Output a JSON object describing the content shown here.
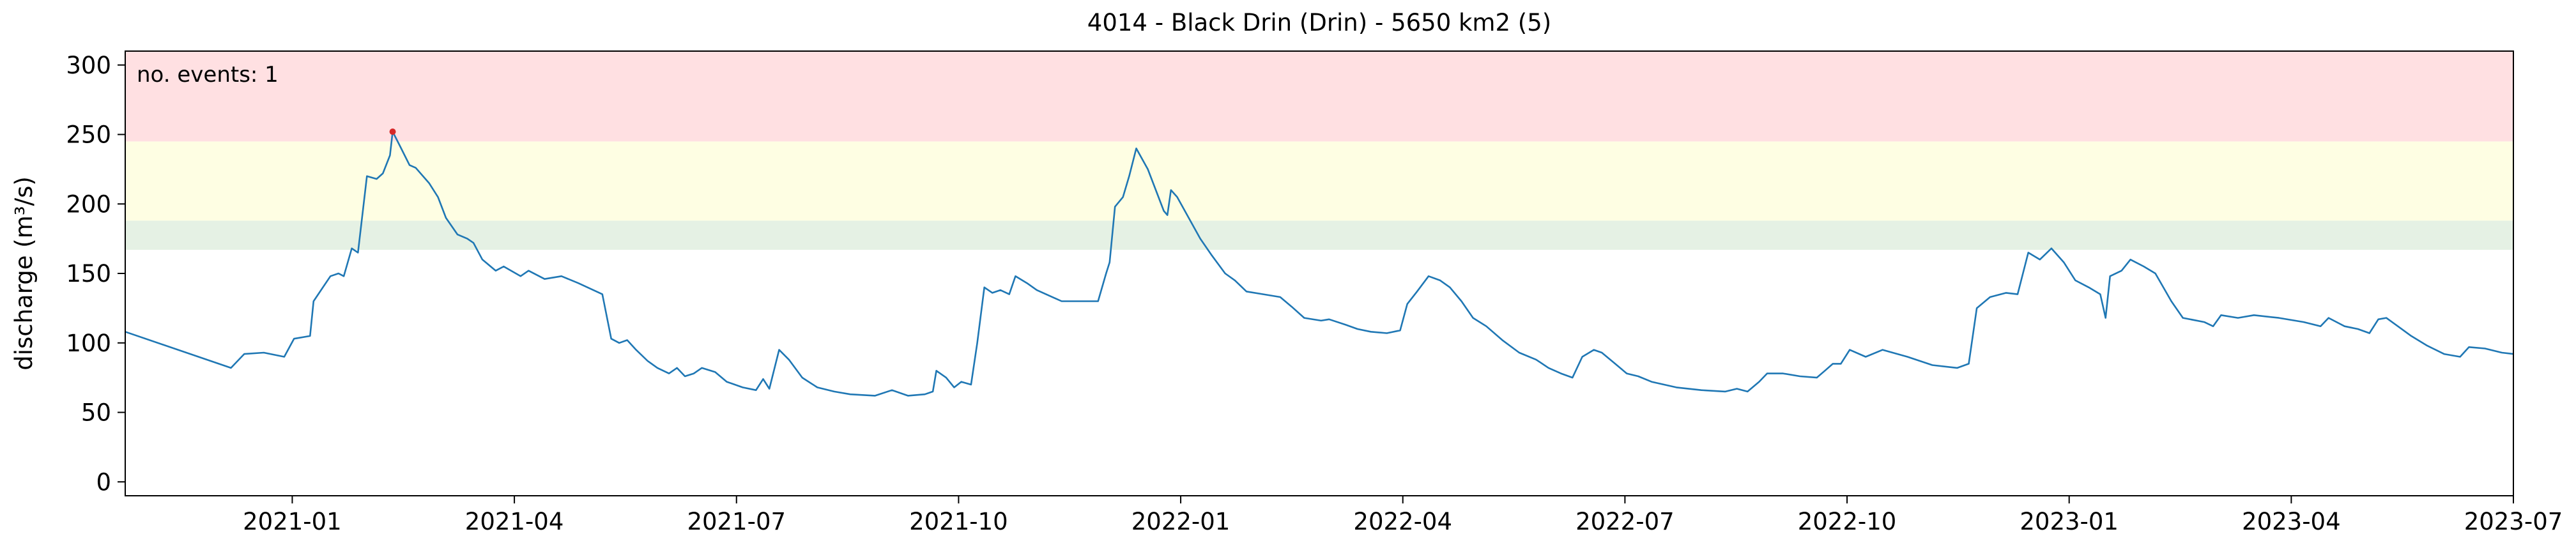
{
  "chart_data": {
    "type": "line",
    "title": "4014 - Black Drin (Drin) - 5650 km2 (5)",
    "y_label": "discharge (m³/s)",
    "annotation": "no. events: 1",
    "annotation_color": "#d62728",
    "xlim": [
      2020.812,
      2023.5
    ],
    "ylim": [
      -10,
      310
    ],
    "yticks": [
      0,
      50,
      100,
      150,
      200,
      250,
      300
    ],
    "xticks": [
      {
        "value": 2021.0,
        "label": "2021-01"
      },
      {
        "value": 2021.25,
        "label": "2021-04"
      },
      {
        "value": 2021.5,
        "label": "2021-07"
      },
      {
        "value": 2021.75,
        "label": "2021-10"
      },
      {
        "value": 2022.0,
        "label": "2022-01"
      },
      {
        "value": 2022.25,
        "label": "2022-04"
      },
      {
        "value": 2022.5,
        "label": "2022-07"
      },
      {
        "value": 2022.75,
        "label": "2022-10"
      },
      {
        "value": 2023.0,
        "label": "2023-01"
      },
      {
        "value": 2023.25,
        "label": "2023-04"
      },
      {
        "value": 2023.5,
        "label": "2023-07"
      }
    ],
    "bands": [
      {
        "from": 167,
        "to": 188,
        "color": "#e5f1e4"
      },
      {
        "from": 188,
        "to": 245,
        "color": "#fefee3"
      },
      {
        "from": 245,
        "to": 310,
        "color": "#ffe0e2"
      }
    ],
    "x": [
      2020.812,
      2020.931,
      2020.946,
      2020.968,
      2020.991,
      2021.002,
      2021.02,
      2021.024,
      2021.043,
      2021.052,
      2021.058,
      2021.067,
      2021.074,
      2021.084,
      2021.095,
      2021.102,
      2021.11,
      2021.113,
      2021.121,
      2021.132,
      2021.139,
      2021.154,
      2021.164,
      2021.173,
      2021.186,
      2021.197,
      2021.204,
      2021.214,
      2021.229,
      2021.238,
      2021.257,
      2021.266,
      2021.284,
      2021.303,
      2021.322,
      2021.349,
      2021.359,
      2021.368,
      2021.377,
      2021.387,
      2021.4,
      2021.411,
      2021.424,
      2021.433,
      2021.442,
      2021.452,
      2021.461,
      2021.476,
      2021.489,
      2021.507,
      2021.522,
      2021.53,
      2021.537,
      2021.548,
      2021.559,
      2021.574,
      2021.591,
      2021.61,
      2021.628,
      2021.656,
      2021.675,
      2021.693,
      2021.712,
      2021.721,
      2021.725,
      2021.736,
      2021.745,
      2021.753,
      2021.764,
      2021.771,
      2021.779,
      2021.788,
      2021.797,
      2021.807,
      2021.814,
      2021.827,
      2021.838,
      2021.866,
      2021.907,
      2021.916,
      2021.92,
      2021.926,
      2021.935,
      2021.942,
      2021.95,
      2021.963,
      2021.972,
      2021.981,
      2021.985,
      2021.989,
      2021.996,
      2022.009,
      2022.022,
      2022.035,
      2022.05,
      2022.061,
      2022.074,
      2022.093,
      2022.112,
      2022.125,
      2022.139,
      2022.158,
      2022.167,
      2022.186,
      2022.199,
      2022.214,
      2022.232,
      2022.247,
      2022.255,
      2022.266,
      2022.279,
      2022.292,
      2022.303,
      2022.316,
      2022.329,
      2022.344,
      2022.362,
      2022.381,
      2022.4,
      2022.414,
      2022.428,
      2022.441,
      2022.452,
      2022.465,
      2022.474,
      2022.489,
      2022.502,
      2022.515,
      2022.53,
      2022.558,
      2022.586,
      2022.613,
      2022.626,
      2022.638,
      2022.651,
      2022.66,
      2022.678,
      2022.697,
      2022.716,
      2022.725,
      2022.734,
      2022.743,
      2022.753,
      2022.771,
      2022.79,
      2022.818,
      2022.846,
      2022.874,
      2022.887,
      2022.896,
      2022.911,
      2022.929,
      2022.942,
      2022.954,
      2022.967,
      2022.98,
      2022.994,
      2023.007,
      2023.022,
      2023.035,
      2023.041,
      2023.046,
      2023.059,
      2023.069,
      2023.084,
      2023.097,
      2023.115,
      2023.128,
      2023.152,
      2023.162,
      2023.171,
      2023.19,
      2023.208,
      2023.236,
      2023.264,
      2023.283,
      2023.292,
      2023.31,
      2023.325,
      2023.338,
      2023.348,
      2023.357,
      2023.37,
      2023.385,
      2023.403,
      2023.422,
      2023.44,
      2023.45,
      2023.468,
      2023.487,
      2023.5
    ],
    "series": [
      {
        "color": "#1f77b4",
        "values": [
          108,
          82,
          92,
          93,
          90,
          103,
          105,
          130,
          148,
          150,
          148,
          168,
          165,
          220,
          218,
          222,
          235,
          252,
          242,
          228,
          226,
          215,
          205,
          190,
          178,
          175,
          172,
          160,
          152,
          155,
          148,
          152,
          146,
          148,
          143,
          135,
          103,
          100,
          102,
          95,
          87,
          82,
          78,
          82,
          76,
          78,
          82,
          79,
          72,
          68,
          66,
          74,
          67,
          95,
          88,
          75,
          68,
          65,
          63,
          62,
          66,
          62,
          63,
          65,
          80,
          75,
          68,
          72,
          70,
          100,
          140,
          136,
          138,
          135,
          148,
          143,
          138,
          130,
          130,
          150,
          158,
          198,
          205,
          220,
          240,
          225,
          210,
          195,
          192,
          210,
          205,
          190,
          175,
          163,
          150,
          145,
          137,
          135,
          133,
          126,
          118,
          116,
          117,
          113,
          110,
          108,
          107,
          109,
          128,
          137,
          148,
          145,
          140,
          130,
          118,
          112,
          102,
          93,
          88,
          82,
          78,
          75,
          90,
          95,
          93,
          85,
          78,
          76,
          72,
          68,
          66,
          65,
          67,
          65,
          72,
          78,
          78,
          76,
          75,
          80,
          85,
          85,
          95,
          90,
          95,
          90,
          84,
          82,
          85,
          125,
          133,
          136,
          135,
          165,
          160,
          168,
          158,
          145,
          140,
          135,
          118,
          148,
          152,
          160,
          155,
          150,
          130,
          118,
          115,
          112,
          120,
          118,
          120,
          118,
          115,
          112,
          118,
          112,
          110,
          107,
          117,
          118,
          112,
          105,
          98,
          92,
          90,
          97,
          96,
          93,
          92
        ]
      }
    ],
    "events": {
      "color": "#d62728",
      "x": [
        2021.113
      ],
      "values": [
        252
      ]
    }
  }
}
